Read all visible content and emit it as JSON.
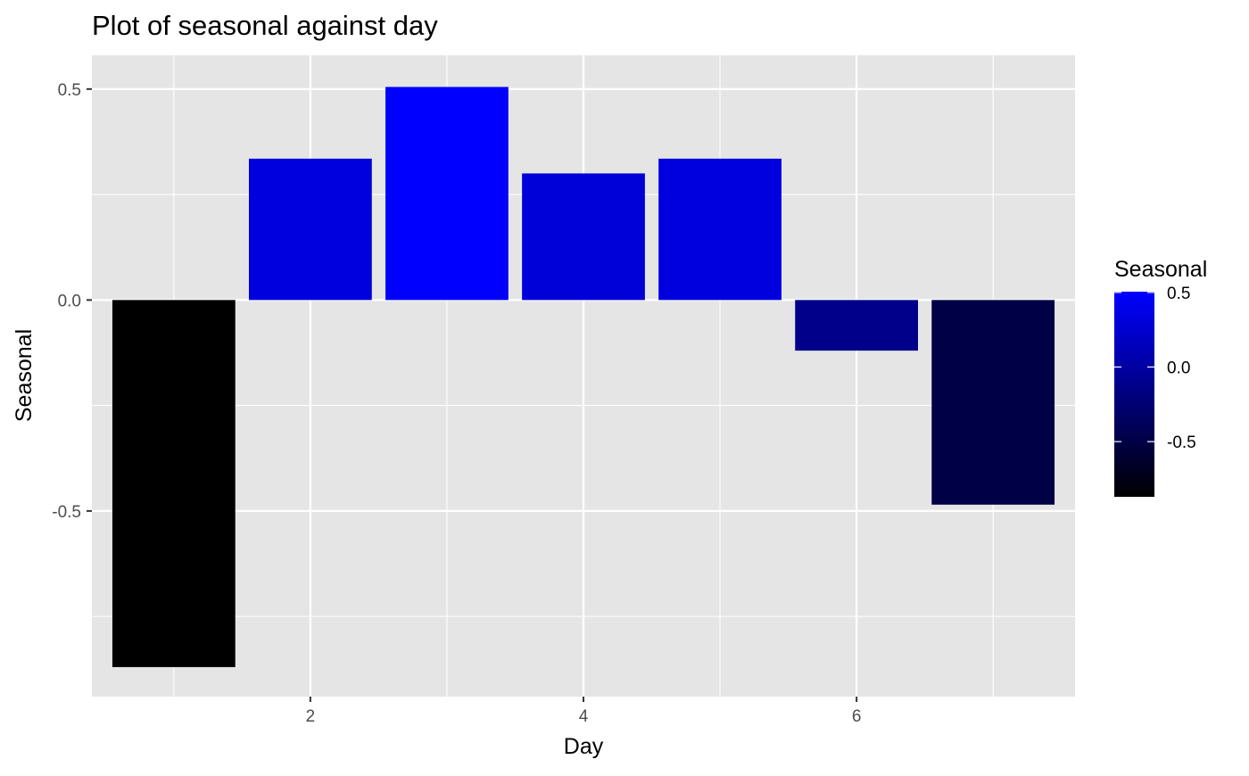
{
  "chart_data": {
    "type": "bar",
    "title": "Plot of seasonal against day",
    "xlabel": "Day",
    "ylabel": "Seasonal",
    "x": [
      1,
      2,
      3,
      4,
      5,
      6,
      7
    ],
    "values": [
      -0.87,
      0.335,
      0.505,
      0.3,
      0.335,
      -0.12,
      -0.485
    ],
    "xlim": [
      0.4,
      7.6
    ],
    "ylim": [
      -0.94,
      0.58
    ],
    "x_ticks": [
      2,
      4,
      6
    ],
    "x_tick_labels": [
      "2",
      "4",
      "6"
    ],
    "y_ticks": [
      0.5,
      0.0,
      -0.5
    ],
    "y_tick_labels": [
      "0.5",
      "0.0",
      "-0.5"
    ],
    "grid": true,
    "panel_background": "#e5e5e5",
    "grid_color": "#ffffff",
    "fill_scale": {
      "low_color": "#000000",
      "high_color": "#0000ff",
      "limits": [
        -0.87,
        0.505
      ]
    },
    "legend": {
      "title": "Seasonal",
      "placement": "right",
      "breaks": [
        0.5,
        0.0,
        -0.5
      ],
      "labels": [
        "0.5",
        "0.0",
        "-0.5"
      ]
    }
  }
}
